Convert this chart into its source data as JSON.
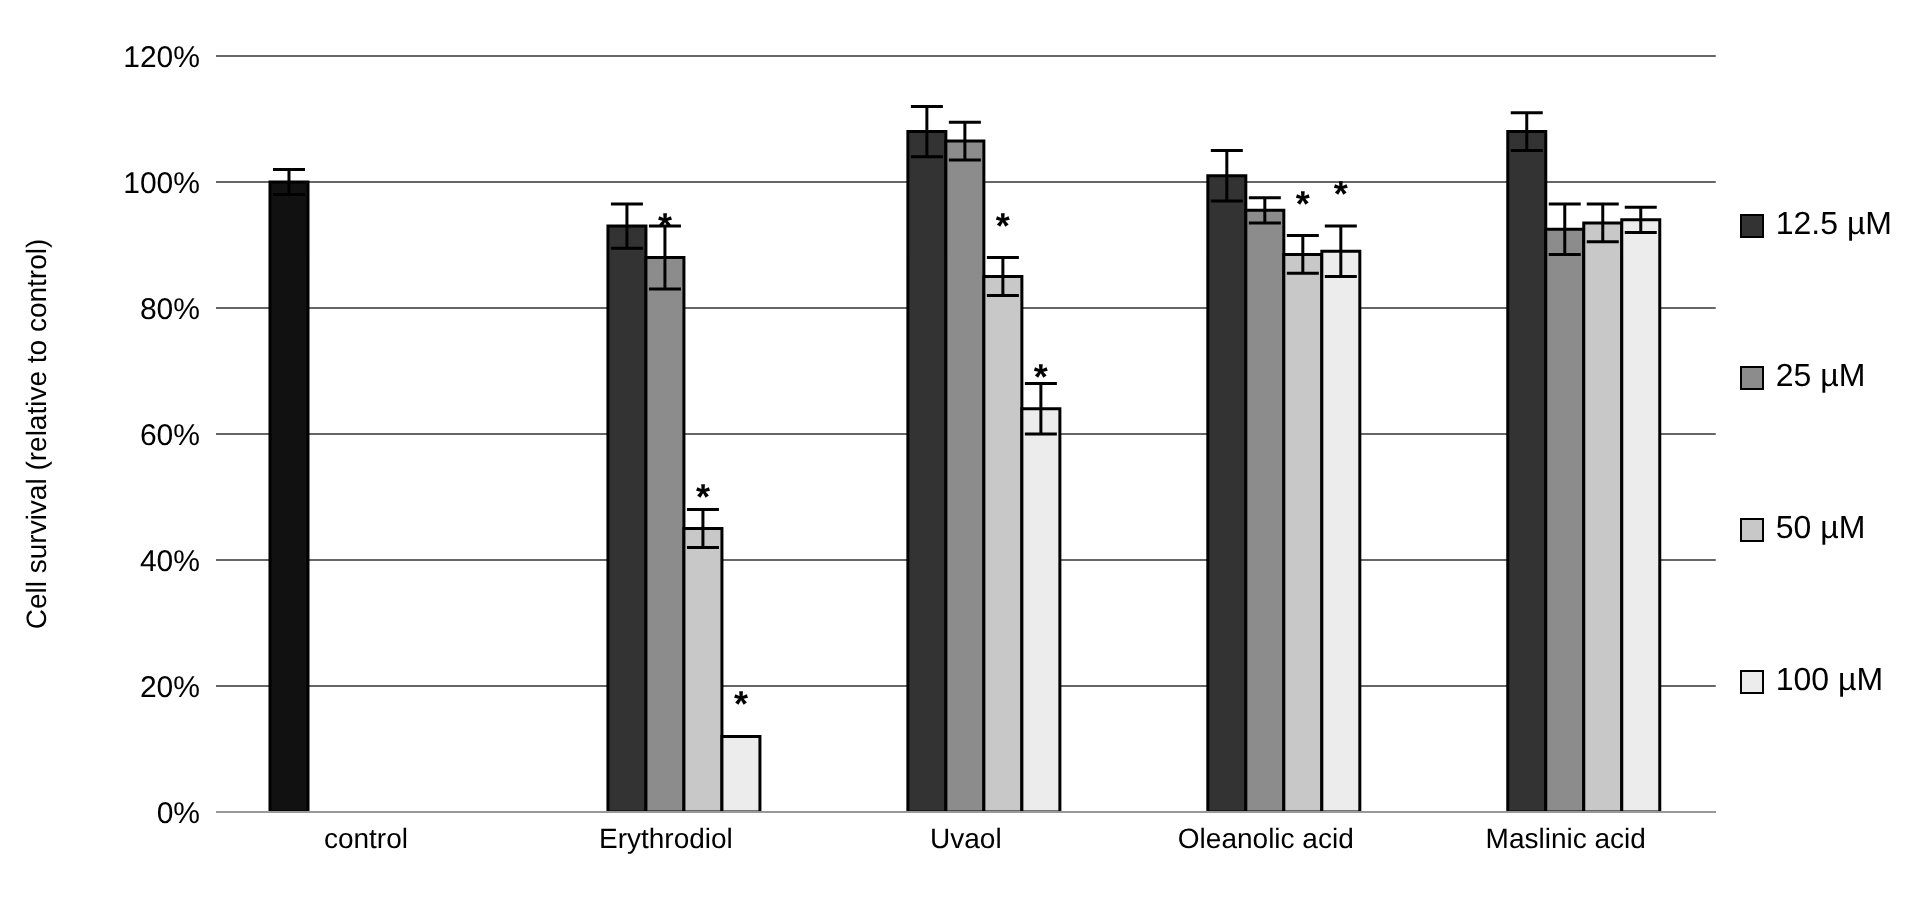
{
  "chart_data": {
    "type": "bar",
    "ylabel": "Cell survival (relative to control)",
    "categories": [
      "control",
      "Erythrodiol",
      "Uvaol",
      "Oleanolic acid",
      "Maslinic acid"
    ],
    "series": [
      {
        "color": "#111111",
        "values": [
          100,
          null,
          null,
          null,
          null
        ],
        "errors": [
          2,
          null,
          null,
          null,
          null
        ]
      },
      {
        "name": "12.5 µM",
        "color": "#333333",
        "values": [
          null,
          93,
          108,
          101,
          108
        ],
        "errors": [
          null,
          3.5,
          4,
          4,
          3
        ]
      },
      {
        "name": "25 µM",
        "color": "#8c8c8c",
        "values": [
          null,
          88,
          106.5,
          95.5,
          92.5
        ],
        "errors": [
          null,
          5,
          3,
          2,
          4
        ],
        "value_labels": [
          null,
          "*",
          null,
          null,
          null
        ]
      },
      {
        "name": "50 µM",
        "color": "#c8c8c8",
        "values": [
          null,
          45,
          85,
          88.5,
          93.5
        ],
        "errors": [
          null,
          3,
          3,
          3,
          3
        ],
        "value_labels": [
          null,
          "*",
          "*",
          "*",
          null
        ]
      },
      {
        "name": "100 µM",
        "color": "#ececec",
        "values": [
          null,
          12,
          64,
          89,
          94
        ],
        "errors": [
          null,
          null,
          4,
          4,
          2
        ],
        "value_labels": [
          null,
          "*",
          "*",
          "*",
          null
        ]
      }
    ],
    "ylim": [
      0,
      120
    ],
    "yticks": [
      {
        "value": 0,
        "label": "0%"
      },
      {
        "value": 20,
        "label": "20%"
      },
      {
        "value": 40,
        "label": "40%"
      },
      {
        "value": 60,
        "label": "60%"
      },
      {
        "value": 80,
        "label": "80%"
      },
      {
        "value": 100,
        "label": "100%"
      },
      {
        "value": 120,
        "label": "120%"
      }
    ],
    "grid": "y",
    "legend": "right"
  }
}
